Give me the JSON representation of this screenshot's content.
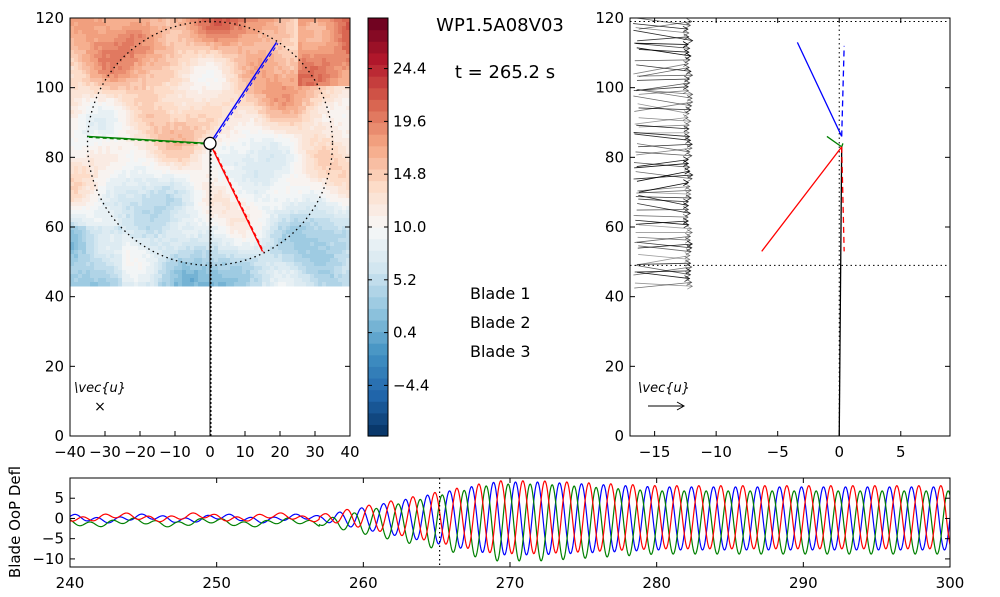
{
  "figure": {
    "run_label": "WP1.5A08V03",
    "time_label": "t = 265.2 s"
  },
  "legend": [
    {
      "label": "Blade 1",
      "color": "#0000ff"
    },
    {
      "label": "Blade 2",
      "color": "#008000"
    },
    {
      "label": "Blade 3",
      "color": "#ff0000"
    }
  ],
  "chart_data": [
    {
      "type": "heatmap",
      "panel": "rotor-plane-velocity-contour",
      "xlim": [
        -40,
        40
      ],
      "ylim": [
        0,
        120
      ],
      "xticks": [
        -40,
        -30,
        -20,
        -10,
        0,
        10,
        20,
        30,
        40
      ],
      "yticks": [
        0,
        20,
        40,
        60,
        80,
        100,
        120
      ],
      "field_extent_y": [
        44,
        120
      ],
      "hub": {
        "x": 0,
        "y": 84
      },
      "rotor_radius": 35,
      "blades": [
        {
          "name": "Blade 1",
          "tip": [
            19,
            113
          ]
        },
        {
          "name": "Blade 2",
          "tip": [
            -35,
            86
          ]
        },
        {
          "name": "Blade 3",
          "tip": [
            15,
            53
          ]
        }
      ],
      "tower": {
        "x": 0,
        "y": [
          0,
          84
        ]
      },
      "vector_label": "\\vec{u}",
      "vector_symbol": "×",
      "colorbar": {
        "range": [
          -9,
          29
        ],
        "ticks": [
          "24.4",
          "19.6",
          "14.8",
          "10.0",
          "5.2",
          "0.4",
          "−4.4"
        ],
        "tick_values": [
          24.4,
          19.6,
          14.8,
          10.0,
          5.2,
          0.4,
          -4.4
        ]
      }
    },
    {
      "type": "line",
      "panel": "side-view-profile",
      "xlim": [
        -17,
        9
      ],
      "ylim": [
        0,
        120
      ],
      "xticks": [
        -15,
        -10,
        -5,
        0,
        5
      ],
      "yticks": [
        0,
        20,
        40,
        60,
        80,
        100,
        120
      ],
      "rotor_bounds_y": [
        49,
        119
      ],
      "arrow_y_range": [
        43,
        119
      ],
      "arrow_base_x": -16.5,
      "arrow_tip_x_range": [
        -12.3,
        -11.9
      ],
      "blades": [
        {
          "name": "Blade 1",
          "root": [
            0.2,
            86
          ],
          "tip": [
            -3.4,
            113
          ],
          "dashed_tip": [
            0.4,
            112
          ]
        },
        {
          "name": "Blade 2",
          "root": [
            0.2,
            83
          ],
          "tip": [
            -1.0,
            86
          ],
          "dashed_tip": [
            0.3,
            84
          ]
        },
        {
          "name": "Blade 3",
          "root": [
            0.2,
            83
          ],
          "tip": [
            -6.3,
            53
          ],
          "dashed_tip": [
            0.4,
            53
          ]
        }
      ],
      "tower": {
        "base": [
          0,
          0
        ],
        "top": [
          0.2,
          83
        ]
      },
      "vector_label": "\\vec{u}"
    },
    {
      "type": "line",
      "panel": "blade-deflection-history",
      "ylabel": "Blade OoP Defl",
      "xlim": [
        240,
        300
      ],
      "ylim": [
        -12,
        10
      ],
      "xticks": [
        240,
        250,
        260,
        270,
        280,
        290,
        300
      ],
      "yticks": [
        5,
        0,
        -5,
        -10
      ],
      "current_time": 265.2,
      "onset_time": 257,
      "period_s": 1.5,
      "series": [
        {
          "name": "Blade 1",
          "phase_deg": 0,
          "offset": 0.0,
          "pre_amp": 0.6,
          "peak_amp": 9.0,
          "post_amp": 7.8
        },
        {
          "name": "Blade 2",
          "phase_deg": 120,
          "offset": -1.0,
          "pre_amp": 0.6,
          "peak_amp": 9.5,
          "post_amp": 7.8
        },
        {
          "name": "Blade 3",
          "phase_deg": 240,
          "offset": 0.3,
          "pre_amp": 0.6,
          "peak_amp": 9.0,
          "post_amp": 7.8
        }
      ]
    }
  ]
}
